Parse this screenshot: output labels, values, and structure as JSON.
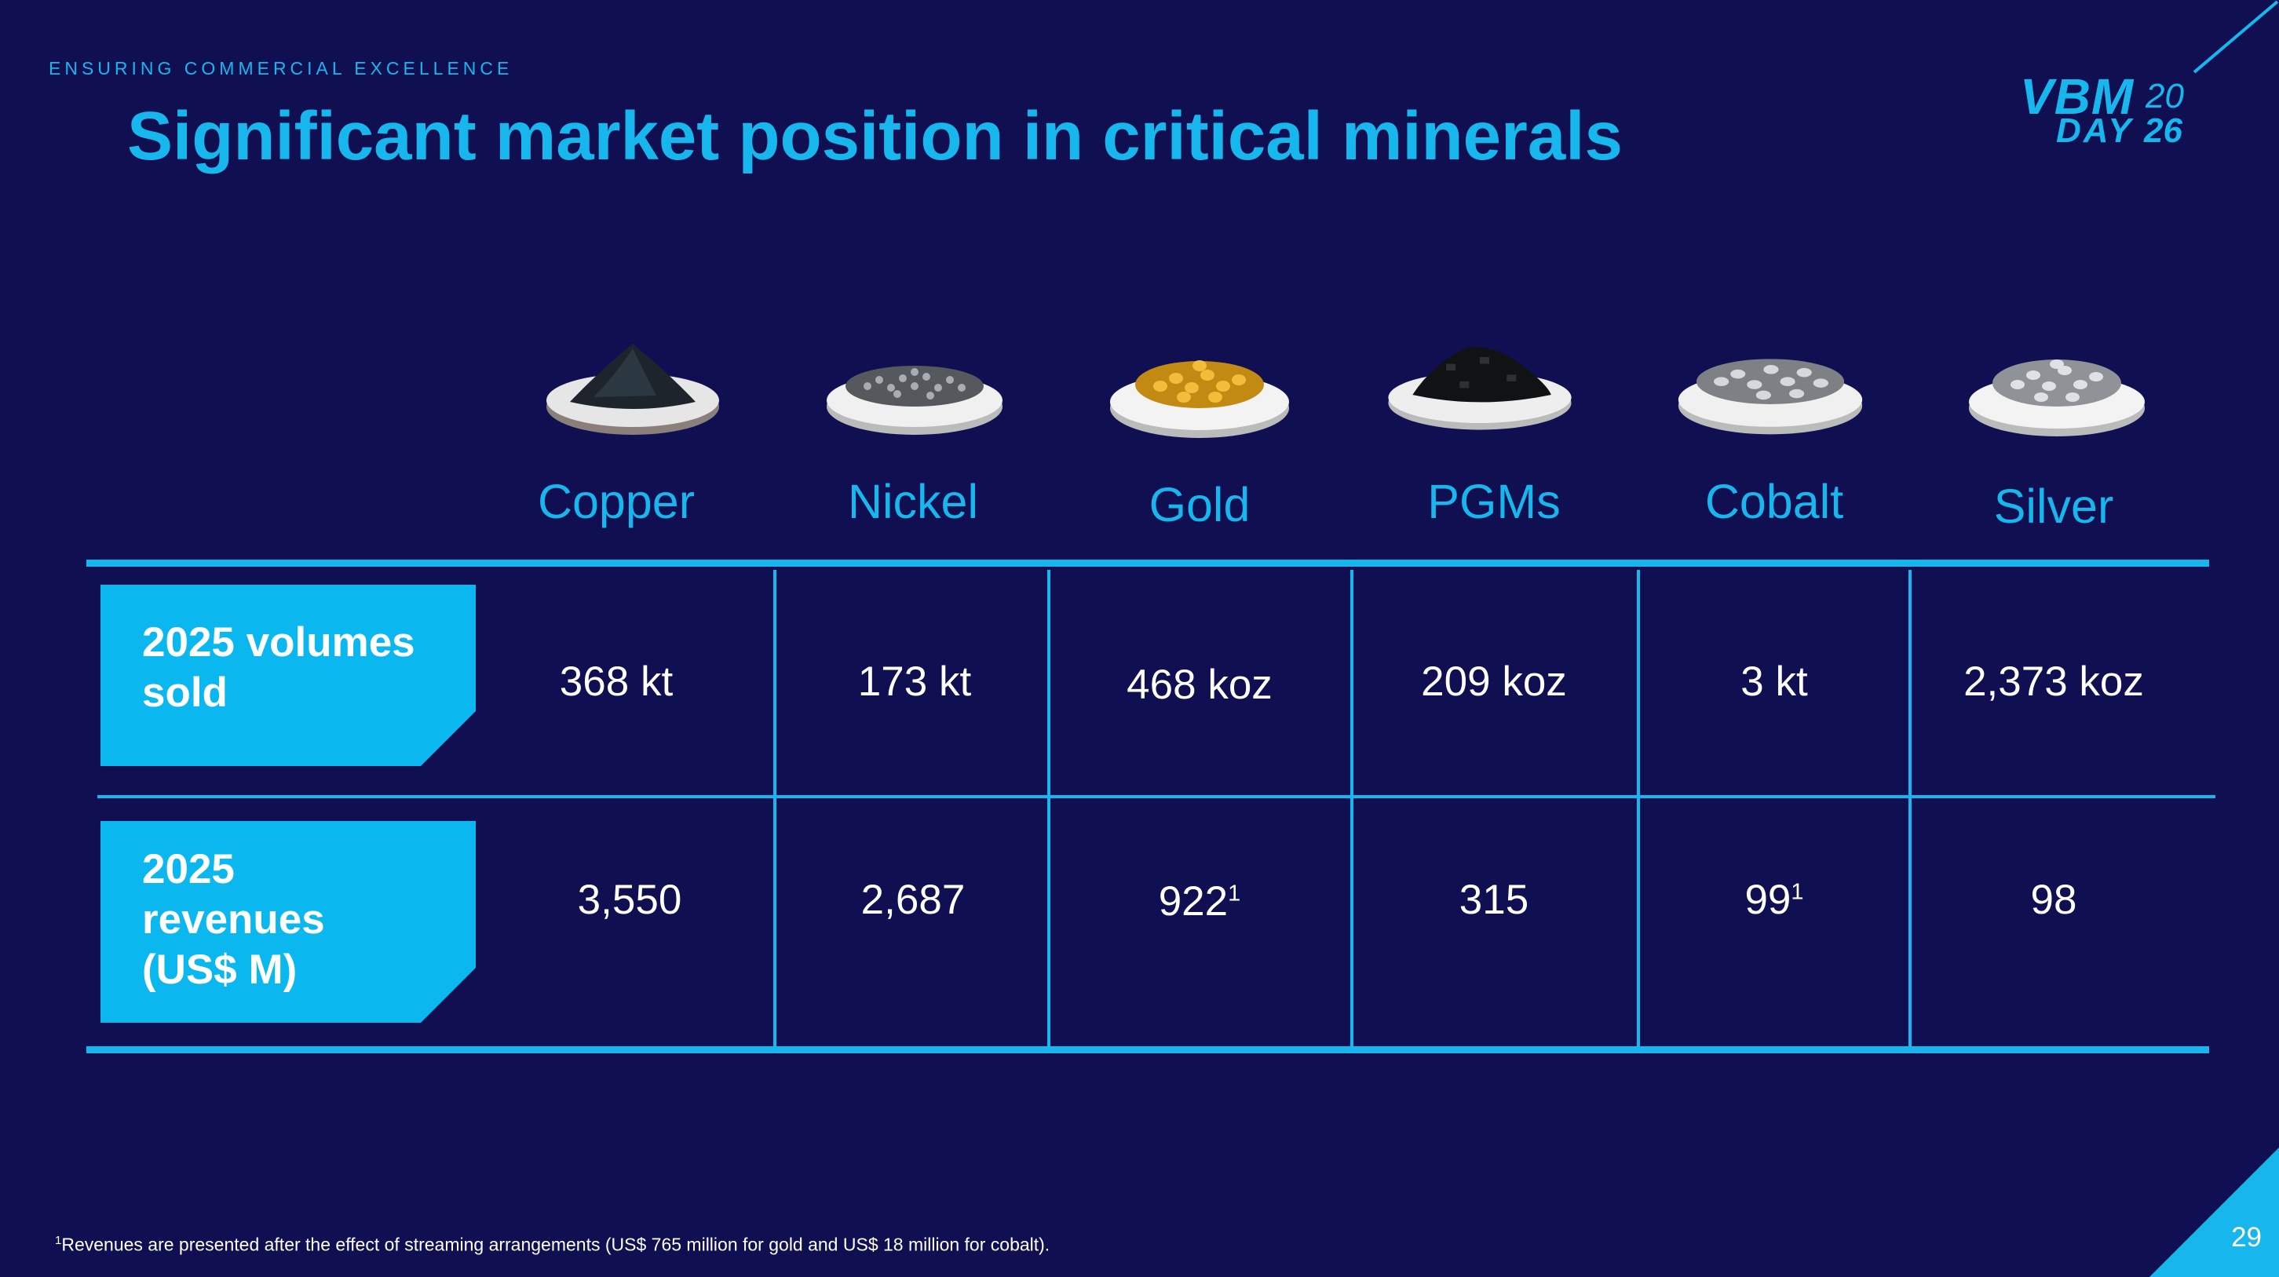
{
  "header": {
    "kicker": "ENSURING COMMERCIAL EXCELLENCE",
    "title": "Significant market position in critical minerals"
  },
  "logo": {
    "vbm": "VBM",
    "year_a": "20",
    "day": "DAY",
    "year_b": "26"
  },
  "minerals": [
    {
      "name": "Copper",
      "icon": "copper-powder-plate"
    },
    {
      "name": "Nickel",
      "icon": "nickel-pellets-plate"
    },
    {
      "name": "Gold",
      "icon": "gold-nuggets-plate"
    },
    {
      "name": "PGMs",
      "icon": "pgm-granules-plate"
    },
    {
      "name": "Cobalt",
      "icon": "cobalt-pieces-plate"
    },
    {
      "name": "Silver",
      "icon": "silver-granules-plate"
    }
  ],
  "rows": [
    {
      "label": "2025 volumes sold",
      "label_lines": [
        "2025 volumes",
        "sold"
      ],
      "values": [
        "368 kt",
        "173 kt",
        "468 koz",
        "209 koz",
        "3 kt",
        "2,373 koz"
      ]
    },
    {
      "label": "2025 revenues (US$ M)",
      "label_lines": [
        "2025",
        "revenues",
        "(US$ M)"
      ],
      "values": [
        "3,550",
        "2,687",
        "922",
        "315",
        "99",
        "98"
      ],
      "footnote_marks": [
        "",
        "",
        "1",
        "",
        "1",
        ""
      ]
    }
  ],
  "footnote": {
    "mark": "1",
    "text": "Revenues are presented after the effect of streaming arrangements (US$ 765 million for gold and US$ 18 million for cobalt)."
  },
  "page_number": "29",
  "colors": {
    "background": "#0f0f52",
    "accent": "#17b7ee",
    "label_fill": "#0ab7ee",
    "text": "#ffffff"
  }
}
